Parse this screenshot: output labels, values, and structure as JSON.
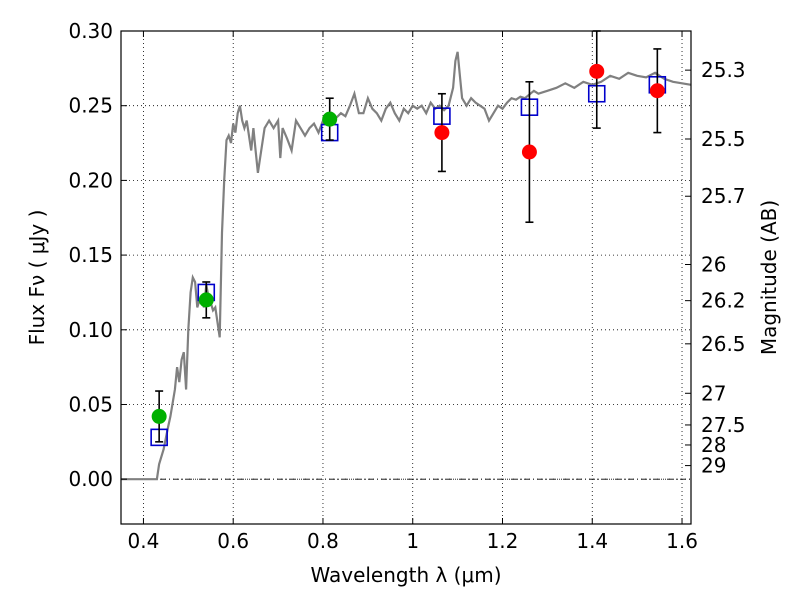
{
  "chart_data": {
    "type": "scatter",
    "xlabel": "Wavelength  λ (μm)",
    "ylabel": "Flux  Fν  ( μJy )",
    "y2label": "Magnitude (AB)",
    "xlim": [
      0.35,
      1.62
    ],
    "ylim": [
      -0.03,
      0.3
    ],
    "grid": true,
    "zero_line": 0.0,
    "x_ticks": [
      0.4,
      0.6,
      0.8,
      1.0,
      1.2,
      1.4,
      1.6
    ],
    "x_tick_labels": [
      "0.4",
      "0.6",
      "0.8",
      "1",
      "1.2",
      "1.4",
      "1.6"
    ],
    "y_ticks": [
      0.0,
      0.05,
      0.1,
      0.15,
      0.2,
      0.25,
      0.3
    ],
    "y_tick_labels": [
      "0.00",
      "0.05",
      "0.10",
      "0.15",
      "0.20",
      "0.25",
      "0.30"
    ],
    "y2_ticks": [
      {
        "label": "25.3",
        "flux": 0.2738
      },
      {
        "label": "25.5",
        "flux": 0.2277
      },
      {
        "label": "25.7",
        "flux": 0.1894
      },
      {
        "label": "26",
        "flux": 0.1437
      },
      {
        "label": "26.2",
        "flux": 0.1195
      },
      {
        "label": "26.5",
        "flux": 0.0906
      },
      {
        "label": "27",
        "flux": 0.0575
      },
      {
        "label": "27.5",
        "flux": 0.0363
      },
      {
        "label": "28",
        "flux": 0.0229
      },
      {
        "label": "29",
        "flux": 0.0091
      }
    ],
    "series": [
      {
        "kind": "line",
        "color": "#808080",
        "points": [
          [
            0.35,
            0.0
          ],
          [
            0.43,
            0.0
          ],
          [
            0.435,
            0.01
          ],
          [
            0.445,
            0.02
          ],
          [
            0.455,
            0.035
          ],
          [
            0.46,
            0.042
          ],
          [
            0.47,
            0.06
          ],
          [
            0.475,
            0.075
          ],
          [
            0.48,
            0.065
          ],
          [
            0.485,
            0.08
          ],
          [
            0.49,
            0.085
          ],
          [
            0.495,
            0.06
          ],
          [
            0.5,
            0.1
          ],
          [
            0.505,
            0.125
          ],
          [
            0.51,
            0.135
          ],
          [
            0.515,
            0.132
          ],
          [
            0.52,
            0.115
          ],
          [
            0.525,
            0.12
          ],
          [
            0.53,
            0.12
          ],
          [
            0.535,
            0.115
          ],
          [
            0.54,
            0.13
          ],
          [
            0.545,
            0.122
          ],
          [
            0.55,
            0.118
          ],
          [
            0.555,
            0.113
          ],
          [
            0.56,
            0.115
          ],
          [
            0.565,
            0.105
          ],
          [
            0.57,
            0.095
          ],
          [
            0.575,
            0.165
          ],
          [
            0.58,
            0.2
          ],
          [
            0.585,
            0.227
          ],
          [
            0.59,
            0.23
          ],
          [
            0.595,
            0.225
          ],
          [
            0.6,
            0.238
          ],
          [
            0.605,
            0.232
          ],
          [
            0.61,
            0.245
          ],
          [
            0.615,
            0.25
          ],
          [
            0.62,
            0.24
          ],
          [
            0.625,
            0.235
          ],
          [
            0.63,
            0.24
          ],
          [
            0.64,
            0.22
          ],
          [
            0.645,
            0.235
          ],
          [
            0.65,
            0.22
          ],
          [
            0.655,
            0.205
          ],
          [
            0.66,
            0.215
          ],
          [
            0.67,
            0.235
          ],
          [
            0.68,
            0.24
          ],
          [
            0.69,
            0.235
          ],
          [
            0.7,
            0.24
          ],
          [
            0.705,
            0.215
          ],
          [
            0.71,
            0.235
          ],
          [
            0.72,
            0.228
          ],
          [
            0.73,
            0.22
          ],
          [
            0.74,
            0.24
          ],
          [
            0.75,
            0.235
          ],
          [
            0.76,
            0.23
          ],
          [
            0.77,
            0.235
          ],
          [
            0.78,
            0.238
          ],
          [
            0.79,
            0.232
          ],
          [
            0.8,
            0.24
          ],
          [
            0.81,
            0.238
          ],
          [
            0.82,
            0.245
          ],
          [
            0.83,
            0.242
          ],
          [
            0.84,
            0.245
          ],
          [
            0.85,
            0.243
          ],
          [
            0.86,
            0.25
          ],
          [
            0.87,
            0.258
          ],
          [
            0.88,
            0.245
          ],
          [
            0.89,
            0.245
          ],
          [
            0.9,
            0.255
          ],
          [
            0.91,
            0.248
          ],
          [
            0.92,
            0.245
          ],
          [
            0.93,
            0.24
          ],
          [
            0.94,
            0.248
          ],
          [
            0.95,
            0.252
          ],
          [
            0.96,
            0.245
          ],
          [
            0.97,
            0.24
          ],
          [
            0.98,
            0.248
          ],
          [
            0.99,
            0.245
          ],
          [
            1.0,
            0.25
          ],
          [
            1.01,
            0.248
          ],
          [
            1.02,
            0.25
          ],
          [
            1.03,
            0.245
          ],
          [
            1.04,
            0.252
          ],
          [
            1.05,
            0.248
          ],
          [
            1.06,
            0.25
          ],
          [
            1.07,
            0.247
          ],
          [
            1.08,
            0.25
          ],
          [
            1.09,
            0.262
          ],
          [
            1.095,
            0.28
          ],
          [
            1.1,
            0.286
          ],
          [
            1.105,
            0.27
          ],
          [
            1.11,
            0.255
          ],
          [
            1.12,
            0.25
          ],
          [
            1.13,
            0.255
          ],
          [
            1.14,
            0.252
          ],
          [
            1.15,
            0.25
          ],
          [
            1.16,
            0.248
          ],
          [
            1.17,
            0.24
          ],
          [
            1.18,
            0.245
          ],
          [
            1.19,
            0.25
          ],
          [
            1.2,
            0.248
          ],
          [
            1.21,
            0.252
          ],
          [
            1.22,
            0.255
          ],
          [
            1.23,
            0.254
          ],
          [
            1.24,
            0.256
          ],
          [
            1.25,
            0.255
          ],
          [
            1.27,
            0.26
          ],
          [
            1.28,
            0.258
          ],
          [
            1.3,
            0.26
          ],
          [
            1.32,
            0.262
          ],
          [
            1.34,
            0.265
          ],
          [
            1.36,
            0.262
          ],
          [
            1.38,
            0.266
          ],
          [
            1.4,
            0.264
          ],
          [
            1.42,
            0.266
          ],
          [
            1.44,
            0.27
          ],
          [
            1.46,
            0.268
          ],
          [
            1.48,
            0.272
          ],
          [
            1.5,
            0.27
          ],
          [
            1.52,
            0.269
          ],
          [
            1.54,
            0.272
          ],
          [
            1.56,
            0.268
          ],
          [
            1.58,
            0.266
          ],
          [
            1.6,
            0.265
          ],
          [
            1.62,
            0.264
          ]
        ]
      },
      {
        "kind": "points",
        "marker": "open-square",
        "color": "#0000cc",
        "x": [
          0.435,
          0.54,
          0.815,
          1.065,
          1.26,
          1.41,
          1.545
        ],
        "y": [
          0.028,
          0.125,
          0.232,
          0.243,
          0.249,
          0.258,
          0.264
        ]
      },
      {
        "kind": "points",
        "marker": "filled-circle",
        "color": "#00b000",
        "x": [
          0.435,
          0.54,
          0.815
        ],
        "y": [
          0.042,
          0.12,
          0.241
        ],
        "yerr": [
          0.017,
          0.012,
          0.014
        ]
      },
      {
        "kind": "points",
        "marker": "filled-circle",
        "color": "#ff0000",
        "x": [
          1.065,
          1.26,
          1.41,
          1.545
        ],
        "y": [
          0.232,
          0.219,
          0.273,
          0.26
        ],
        "yerr": [
          0.026,
          0.047,
          0.038,
          0.028
        ]
      }
    ]
  }
}
